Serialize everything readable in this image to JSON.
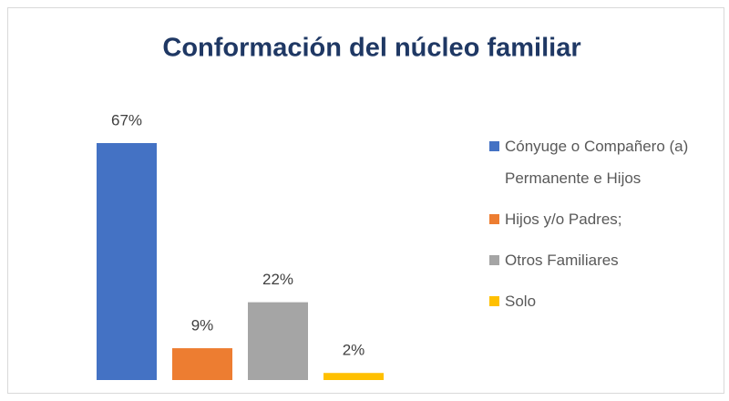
{
  "chart_data": {
    "type": "bar",
    "title": "Conformación del núcleo familiar",
    "categories": [
      "Cónyuge o Compañero (a) Permanente e Hijos",
      "Hijos y/o Padres;",
      "Otros Familiares",
      "Solo"
    ],
    "values": [
      67,
      9,
      22,
      2
    ],
    "value_labels": [
      "67%",
      "9%",
      "22%",
      "2%"
    ],
    "colors": [
      "#4472c4",
      "#ed7d31",
      "#a5a5a5",
      "#ffc000"
    ],
    "legend": "right"
  }
}
